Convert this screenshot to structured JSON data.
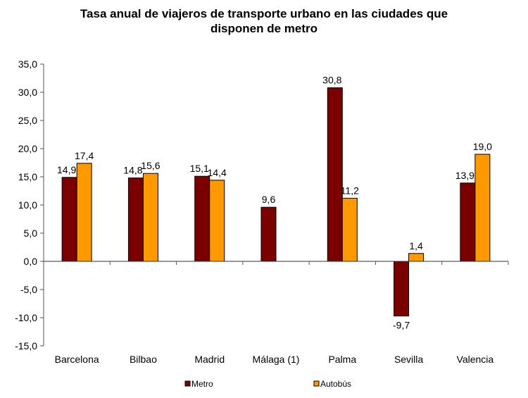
{
  "chart_data": {
    "type": "bar",
    "title_lines": [
      "Tasa anual de viajeros de transporte urbano en las ciudades que",
      "disponen de metro"
    ],
    "title": "Tasa anual de viajeros de transporte urbano en las ciudades que disponen de metro",
    "xlabel": "",
    "ylabel": "",
    "categories": [
      "Barcelona",
      "Bilbao",
      "Madrid",
      "Málaga (1)",
      "Palma",
      "Sevilla",
      "Valencia"
    ],
    "series": [
      {
        "name": "Metro",
        "color": "#7B0000",
        "values": [
          14.9,
          14.8,
          15.1,
          9.6,
          30.8,
          -9.7,
          13.9
        ],
        "labels": [
          "14,9",
          "14,8",
          "15,1",
          "9,6",
          "30,8",
          "-9,7",
          "13,9"
        ]
      },
      {
        "name": "Autobús",
        "color": "#FF9900",
        "values": [
          17.4,
          15.6,
          14.4,
          null,
          11.2,
          1.4,
          19.0
        ],
        "labels": [
          "17,4",
          "15,6",
          "14,4",
          null,
          "11,2",
          "1,4",
          "19,0"
        ]
      }
    ],
    "ylim": [
      -15,
      35
    ],
    "yticks": [
      35,
      30,
      25,
      20,
      15,
      10,
      5,
      0,
      -5,
      -10,
      -15
    ],
    "ytick_labels": [
      "35,0",
      "30,0",
      "25,0",
      "20,0",
      "15,0",
      "10,0",
      "5,0",
      "0,0",
      "-5,0",
      "-10,0",
      "-15,0"
    ],
    "grid": false,
    "legend_position": "bottom"
  }
}
